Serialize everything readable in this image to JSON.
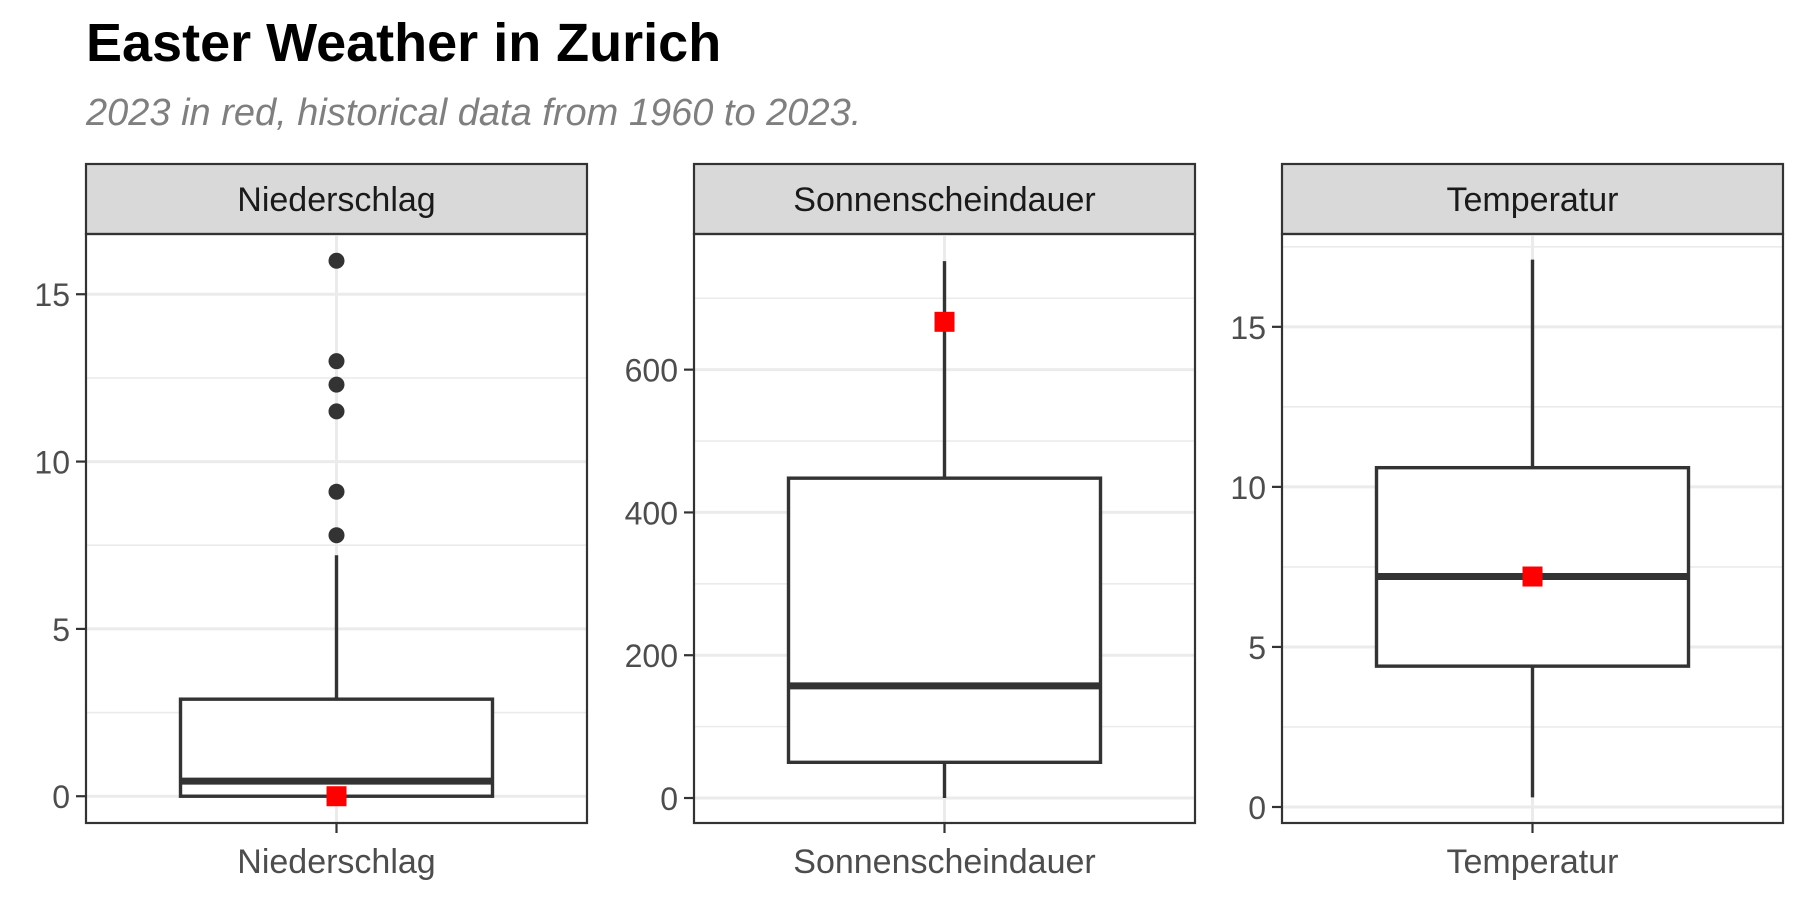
{
  "title": "Easter Weather in Zurich",
  "subtitle": "2023 in red, historical data from 1960 to 2023.",
  "colors": {
    "highlight": "#ff0000",
    "box_stroke": "#333333",
    "strip_fill": "#d9d9d9",
    "grid": "#ebebeb",
    "axis_text": "#4d4d4d"
  },
  "chart_data": [
    {
      "type": "boxplot",
      "panel_title": "Niederschlag",
      "x_tick": "Niederschlag",
      "ylim": [
        -0.8,
        16.8
      ],
      "y_ticks": [
        0,
        5,
        10,
        15
      ],
      "grid": true,
      "box": {
        "whisker_low": 0,
        "q1": 0,
        "median": 0.45,
        "q3": 2.9,
        "whisker_high": 7.2
      },
      "outliers": [
        7.8,
        9.1,
        11.5,
        12.3,
        13.0,
        16.0
      ],
      "highlight_2023": 0
    },
    {
      "type": "boxplot",
      "panel_title": "Sonnenscheindauer",
      "x_tick": "Sonnenscheindauer",
      "ylim": [
        -35,
        790
      ],
      "y_ticks": [
        0,
        200,
        400,
        600
      ],
      "grid": true,
      "box": {
        "whisker_low": 0,
        "q1": 50,
        "median": 157,
        "q3": 448,
        "whisker_high": 752
      },
      "outliers": [],
      "highlight_2023": 667
    },
    {
      "type": "boxplot",
      "panel_title": "Temperatur",
      "x_tick": "Temperatur",
      "ylim": [
        -0.5,
        17.9
      ],
      "y_ticks": [
        0,
        5,
        10,
        15
      ],
      "grid": true,
      "box": {
        "whisker_low": 0.3,
        "q1": 4.4,
        "median": 7.2,
        "q3": 10.6,
        "whisker_high": 17.1
      },
      "outliers": [],
      "highlight_2023": 7.2
    }
  ]
}
